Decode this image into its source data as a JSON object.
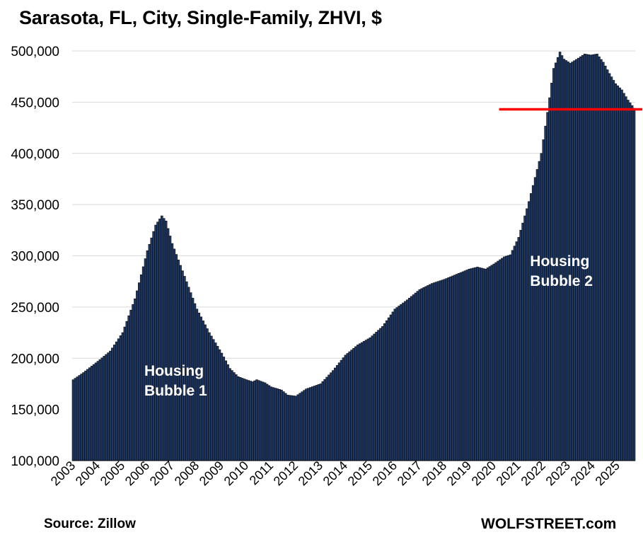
{
  "title": "Sarasota, FL, City, Single-Family, ZHVI, $",
  "source": "Source: Zillow",
  "brand": "WOLFSTREET.com",
  "colors": {
    "bar": "#1f3864",
    "bar_edge": "#0a0a0a",
    "reference_line": "#ff0000",
    "grid": "#d9d9d9"
  },
  "chart_data": {
    "type": "bar",
    "title": "Sarasota, FL, City, Single-Family, ZHVI, $",
    "xlabel": "",
    "ylabel": "",
    "ylim": [
      100000,
      500000
    ],
    "y_ticks": [
      100000,
      150000,
      200000,
      250000,
      300000,
      350000,
      400000,
      450000,
      500000
    ],
    "y_tick_labels": [
      "100,000",
      "150,000",
      "200,000",
      "250,000",
      "300,000",
      "350,000",
      "400,000",
      "450,000",
      "500,000"
    ],
    "x_tick_labels": [
      "2003",
      "2004",
      "2005",
      "2006",
      "2007",
      "2008",
      "2009",
      "2010",
      "2011",
      "2012",
      "2013",
      "2014",
      "2015",
      "2016",
      "2017",
      "2018",
      "2019",
      "2020",
      "2021",
      "2022",
      "2023",
      "2024",
      "2025"
    ],
    "frequency": "monthly",
    "start": "2003-01",
    "end": "2025-09",
    "grid": true,
    "anchors": [
      [
        "2003-01",
        179000
      ],
      [
        "2003-06",
        186000
      ],
      [
        "2004-01",
        197000
      ],
      [
        "2004-07",
        207000
      ],
      [
        "2005-01",
        225000
      ],
      [
        "2005-07",
        258000
      ],
      [
        "2006-01",
        305000
      ],
      [
        "2006-05",
        330000
      ],
      [
        "2006-08",
        339000
      ],
      [
        "2006-10",
        334000
      ],
      [
        "2007-01",
        312000
      ],
      [
        "2007-07",
        280000
      ],
      [
        "2008-01",
        248000
      ],
      [
        "2008-07",
        225000
      ],
      [
        "2009-01",
        205000
      ],
      [
        "2009-05",
        190000
      ],
      [
        "2009-09",
        182000
      ],
      [
        "2010-01",
        179000
      ],
      [
        "2010-04",
        177000
      ],
      [
        "2010-06",
        179000
      ],
      [
        "2010-10",
        176000
      ],
      [
        "2011-01",
        172000
      ],
      [
        "2011-06",
        169000
      ],
      [
        "2011-09",
        164000
      ],
      [
        "2012-01",
        163000
      ],
      [
        "2012-06",
        170000
      ],
      [
        "2013-01",
        175000
      ],
      [
        "2013-07",
        188000
      ],
      [
        "2014-01",
        203000
      ],
      [
        "2014-07",
        213000
      ],
      [
        "2015-01",
        220000
      ],
      [
        "2015-07",
        231000
      ],
      [
        "2016-01",
        248000
      ],
      [
        "2016-07",
        257000
      ],
      [
        "2017-01",
        267000
      ],
      [
        "2017-07",
        273000
      ],
      [
        "2018-01",
        277000
      ],
      [
        "2018-07",
        282000
      ],
      [
        "2019-01",
        287000
      ],
      [
        "2019-05",
        289000
      ],
      [
        "2019-09",
        287000
      ],
      [
        "2020-01",
        292000
      ],
      [
        "2020-06",
        299000
      ],
      [
        "2020-09",
        301000
      ],
      [
        "2021-01",
        318000
      ],
      [
        "2021-06",
        353000
      ],
      [
        "2021-12",
        400000
      ],
      [
        "2022-03",
        440000
      ],
      [
        "2022-06",
        483000
      ],
      [
        "2022-09",
        499000
      ],
      [
        "2022-11",
        492000
      ],
      [
        "2023-02",
        488000
      ],
      [
        "2023-06",
        493000
      ],
      [
        "2023-09",
        497000
      ],
      [
        "2023-12",
        496000
      ],
      [
        "2024-03",
        497000
      ],
      [
        "2024-06",
        489000
      ],
      [
        "2024-09",
        478000
      ],
      [
        "2024-12",
        468000
      ],
      [
        "2025-03",
        462000
      ],
      [
        "2025-06",
        452000
      ],
      [
        "2025-09",
        444000
      ]
    ],
    "reference_line": {
      "value": 443000,
      "from": "2020-04",
      "to": "2025-09"
    },
    "annotations": [
      {
        "text_lines": [
          "Housing",
          "Bubble 1"
        ],
        "x": "2005-12",
        "y": 183000
      },
      {
        "text_lines": [
          "Housing",
          "Bubble 2"
        ],
        "x": "2021-07",
        "y": 290000
      }
    ]
  }
}
